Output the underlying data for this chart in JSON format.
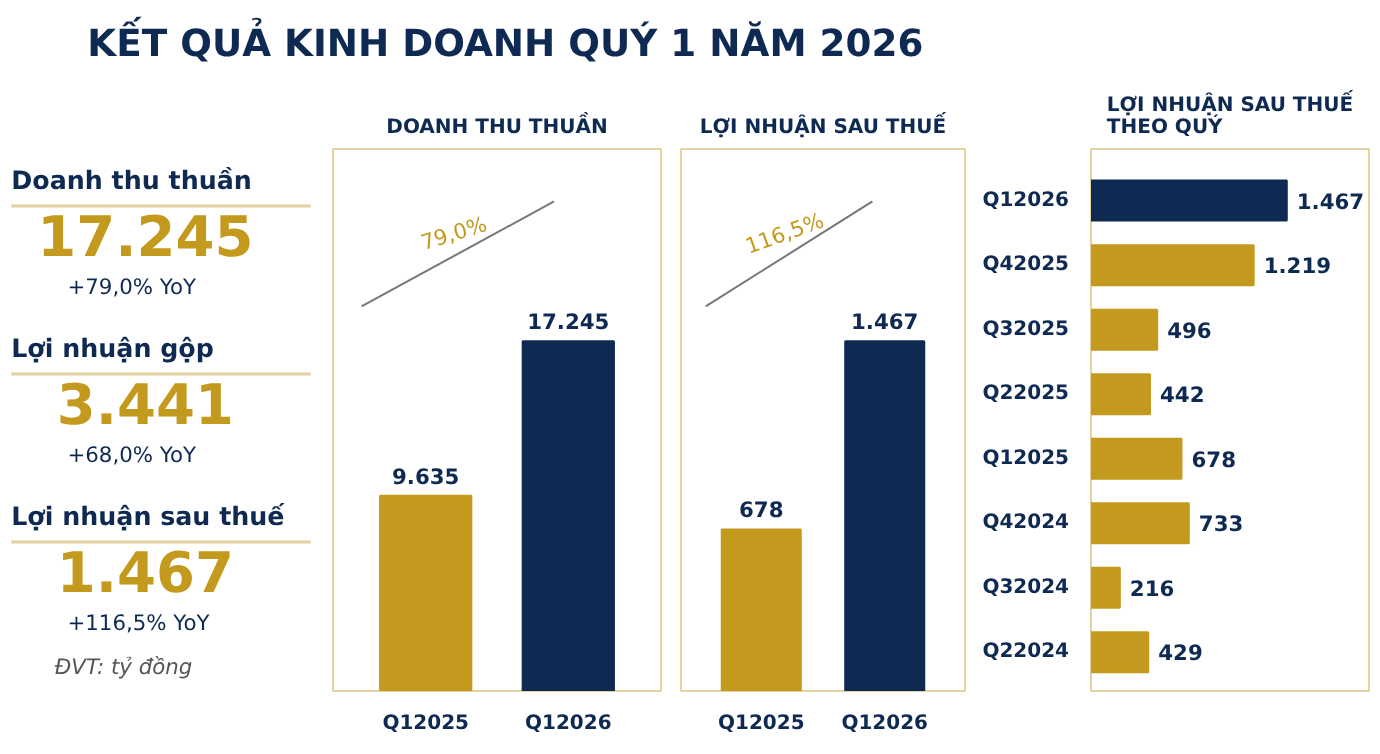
{
  "chart_data": [
    {
      "type": "other",
      "title": "KẾT QUẢ KINH DOANH QUÝ 1 NĂM 2026",
      "annotations": [
        "Doanh thu thuần",
        "17.245",
        "+79,0% YoY",
        "Lợi nhuận gộp",
        "3.441",
        "+68,0% YoY",
        "Lợi nhuận sau thuế",
        "1.467",
        "+116,5% YoY",
        "ĐVT: tỷ đồng"
      ]
    },
    {
      "type": "bar",
      "title": "DOANH THU THUẦN",
      "categories": [
        "Q12025",
        "Q12026"
      ],
      "values": [
        9635,
        17245
      ],
      "colors": [
        "#c49a1e",
        "#0f2a52"
      ],
      "value_labels": [
        "9.635",
        "17.245"
      ],
      "annotations": [
        "79,0%"
      ]
    },
    {
      "type": "bar",
      "title": "LỢI NHUẬN SAU THUẾ",
      "categories": [
        "Q12025",
        "Q12026"
      ],
      "values": [
        678,
        1467
      ],
      "colors": [
        "#c49a1e",
        "#0f2a52"
      ],
      "value_labels": [
        "678",
        "1.467"
      ],
      "annotations": [
        "116,5%"
      ]
    },
    {
      "type": "bar",
      "orientation": "horizontal",
      "title": "LỢI NHUẬN SAU THUẾ\nTHEO QUÝ",
      "categories": [
        "Q12026",
        "Q42025",
        "Q32025",
        "Q22025",
        "Q12025",
        "Q42024",
        "Q32024",
        "Q22024"
      ],
      "values": [
        1467,
        1219,
        496,
        442,
        678,
        733,
        216,
        429
      ],
      "colors": [
        "#0f2a52",
        "#c49a1e",
        "#c49a1e",
        "#c49a1e",
        "#c49a1e",
        "#c49a1e",
        "#c49a1e",
        "#c49a1e"
      ],
      "value_labels": [
        "1.467",
        "1.219",
        "496",
        "442",
        "678",
        "733",
        "216",
        "429"
      ]
    }
  ]
}
